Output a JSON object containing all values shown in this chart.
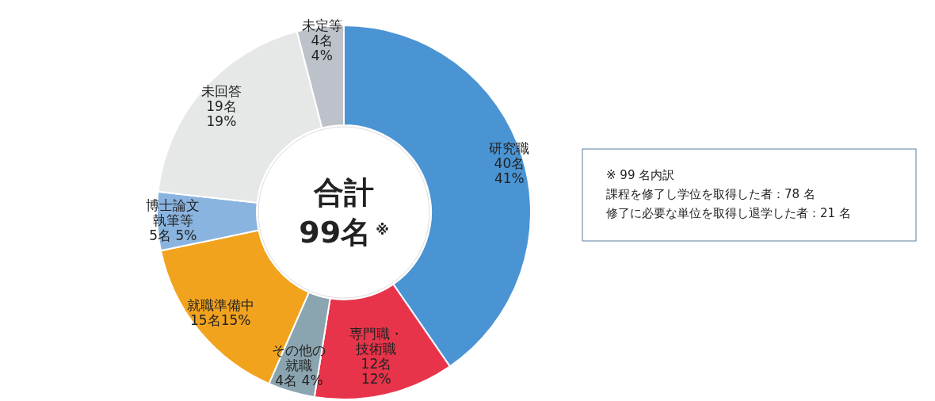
{
  "chart_data": {
    "type": "donut",
    "categories": [
      "研究職",
      "専門職・技術職",
      "その他の就職",
      "就職準備中",
      "博士論文執筆等",
      "未回答",
      "未定等"
    ],
    "values": [
      40,
      12,
      4,
      15,
      5,
      19,
      4
    ],
    "value_labels": [
      "40名 41%",
      "12名 12%",
      "4名 4%",
      "15名15%",
      "5名 5%",
      "19名 19%",
      "4名 4%"
    ],
    "colors": [
      "#4a94d3",
      "#e8344a",
      "#8aa4b0",
      "#f2a31e",
      "#8ab4e0",
      "#e6e8e8",
      "#bdc1c9"
    ],
    "annotations": [
      "合計",
      "99名$^{※}$",
      "※ 99 名内訳",
      "課程を修了し学位を取得した者：78 名",
      "修了に必要な単位を取得し退学した者：21 名"
    ]
  }
}
